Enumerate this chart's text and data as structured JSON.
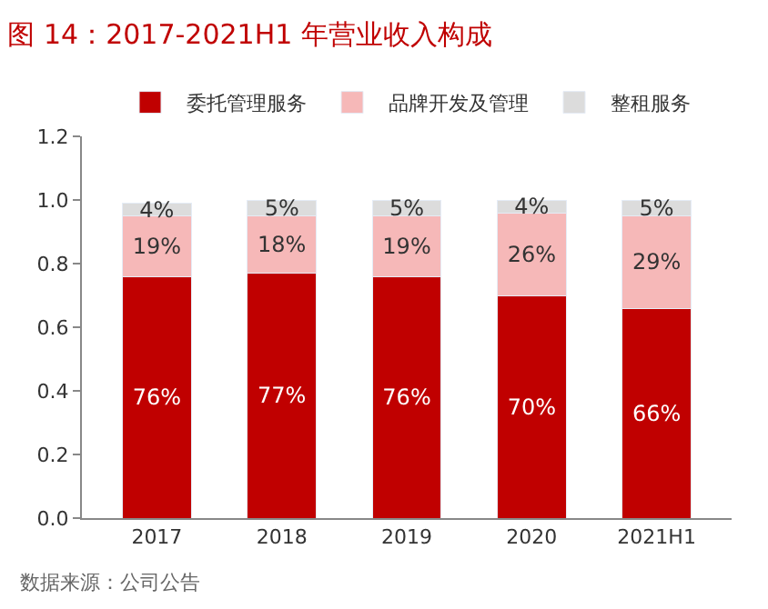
{
  "chart_data": {
    "type": "bar",
    "stacked": true,
    "title": "图 14：2017-2021H1 年营业收入构成",
    "categories": [
      "2017",
      "2018",
      "2019",
      "2020",
      "2021H1"
    ],
    "series": [
      {
        "name": "委托管理服务",
        "color": "#c00000",
        "values": [
          0.76,
          0.77,
          0.76,
          0.7,
          0.66
        ],
        "value_labels": [
          "76%",
          "77%",
          "76%",
          "70%",
          "66%"
        ]
      },
      {
        "name": "品牌开发及管理",
        "color": "#f6b8b8",
        "values": [
          0.19,
          0.18,
          0.19,
          0.26,
          0.29
        ],
        "value_labels": [
          "19%",
          "18%",
          "19%",
          "26%",
          "29%"
        ]
      },
      {
        "name": "整租服务",
        "color": "#dcdcdc",
        "values": [
          0.04,
          0.05,
          0.05,
          0.04,
          0.05
        ],
        "value_labels": [
          "4%",
          "5%",
          "5%",
          "4%",
          "5%"
        ]
      }
    ],
    "ylim": [
      0,
      1.2
    ],
    "yticks": [
      {
        "value": 0,
        "label": "0.0"
      },
      {
        "value": 0.2,
        "label": "0.2"
      },
      {
        "value": 0.4,
        "label": "0.4"
      },
      {
        "value": 0.6,
        "label": "0.6"
      },
      {
        "value": 0.8,
        "label": "0.8"
      },
      {
        "value": 1.0,
        "label": "1.0"
      },
      {
        "value": 1.2,
        "label": "1.2"
      }
    ],
    "legend": "top",
    "annotations": [
      "数据来源：公司公告"
    ]
  }
}
